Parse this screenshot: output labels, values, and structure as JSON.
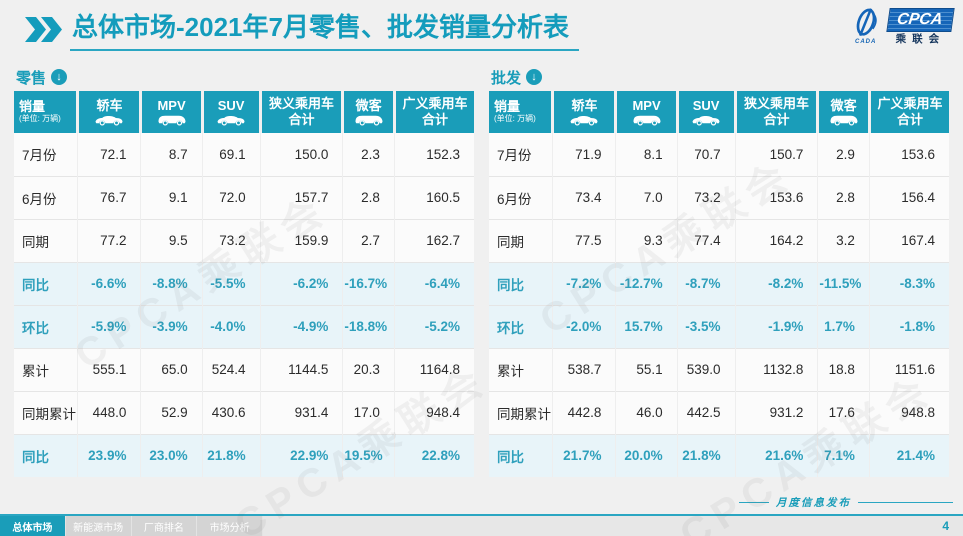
{
  "header": {
    "title_bold": "总体市场",
    "title_rest": "-2021年7月零售、批发销量分析表",
    "logo": {
      "cpca": "CPCA",
      "org": "乘联会",
      "emblem_caption": "CADA"
    }
  },
  "unit_header": {
    "line1": "销量",
    "line2": "(单位: 万辆)"
  },
  "columns": [
    {
      "label": "轿车",
      "icon": "sedan-icon"
    },
    {
      "label": "MPV",
      "icon": "mpv-icon"
    },
    {
      "label": "SUV",
      "icon": "suv-icon"
    },
    {
      "label": "狭义乘用车",
      "label2": "合计"
    },
    {
      "label": "微客",
      "icon": "microvan-icon"
    },
    {
      "label": "广义乘用车",
      "label2": "合计"
    }
  ],
  "tables": [
    {
      "section_label": "零售",
      "rows": [
        {
          "label": "7月份",
          "pct": false,
          "values": [
            "72.1",
            "8.7",
            "69.1",
            "150.0",
            "2.3",
            "152.3"
          ]
        },
        {
          "label": "6月份",
          "pct": false,
          "values": [
            "76.7",
            "9.1",
            "72.0",
            "157.7",
            "2.8",
            "160.5"
          ]
        },
        {
          "label": "同期",
          "pct": false,
          "values": [
            "77.2",
            "9.5",
            "73.2",
            "159.9",
            "2.7",
            "162.7"
          ]
        },
        {
          "label": "同比",
          "pct": true,
          "values": [
            "-6.6%",
            "-8.8%",
            "-5.5%",
            "-6.2%",
            "-16.7%",
            "-6.4%"
          ]
        },
        {
          "label": "环比",
          "pct": true,
          "values": [
            "-5.9%",
            "-3.9%",
            "-4.0%",
            "-4.9%",
            "-18.8%",
            "-5.2%"
          ]
        },
        {
          "label": "累计",
          "pct": false,
          "values": [
            "555.1",
            "65.0",
            "524.4",
            "1144.5",
            "20.3",
            "1164.8"
          ]
        },
        {
          "label": "同期累计",
          "pct": false,
          "values": [
            "448.0",
            "52.9",
            "430.6",
            "931.4",
            "17.0",
            "948.4"
          ]
        },
        {
          "label": "同比",
          "pct": true,
          "values": [
            "23.9%",
            "23.0%",
            "21.8%",
            "22.9%",
            "19.5%",
            "22.8%"
          ]
        }
      ]
    },
    {
      "section_label": "批发",
      "rows": [
        {
          "label": "7月份",
          "pct": false,
          "values": [
            "71.9",
            "8.1",
            "70.7",
            "150.7",
            "2.9",
            "153.6"
          ]
        },
        {
          "label": "6月份",
          "pct": false,
          "values": [
            "73.4",
            "7.0",
            "73.2",
            "153.6",
            "2.8",
            "156.4"
          ]
        },
        {
          "label": "同期",
          "pct": false,
          "values": [
            "77.5",
            "9.3",
            "77.4",
            "164.2",
            "3.2",
            "167.4"
          ]
        },
        {
          "label": "同比",
          "pct": true,
          "values": [
            "-7.2%",
            "-12.7%",
            "-8.7%",
            "-8.2%",
            "-11.5%",
            "-8.3%"
          ]
        },
        {
          "label": "环比",
          "pct": true,
          "values": [
            "-2.0%",
            "15.7%",
            "-3.5%",
            "-1.9%",
            "1.7%",
            "-1.8%"
          ]
        },
        {
          "label": "累计",
          "pct": false,
          "values": [
            "538.7",
            "55.1",
            "539.0",
            "1132.8",
            "18.8",
            "1151.6"
          ]
        },
        {
          "label": "同期累计",
          "pct": false,
          "values": [
            "442.8",
            "46.0",
            "442.5",
            "931.2",
            "17.6",
            "948.8"
          ]
        },
        {
          "label": "同比",
          "pct": true,
          "values": [
            "21.7%",
            "20.0%",
            "21.8%",
            "21.6%",
            "7.1%",
            "21.4%"
          ]
        }
      ]
    }
  ],
  "footer": {
    "tabs": [
      {
        "label": "总体市场",
        "active": true
      },
      {
        "label": "新能源市场",
        "active": false
      },
      {
        "label": "厂商排名",
        "active": false
      },
      {
        "label": "市场分析",
        "active": false
      }
    ],
    "release_label": "月度信息发布",
    "page_number": "4"
  },
  "watermark": "CPCA乘联会",
  "colors": {
    "teal": "#1A9DB9",
    "pct_bg": "#E8F4F9",
    "pct_text": "#2FA0BC",
    "logo_blue": "#1565B8"
  }
}
